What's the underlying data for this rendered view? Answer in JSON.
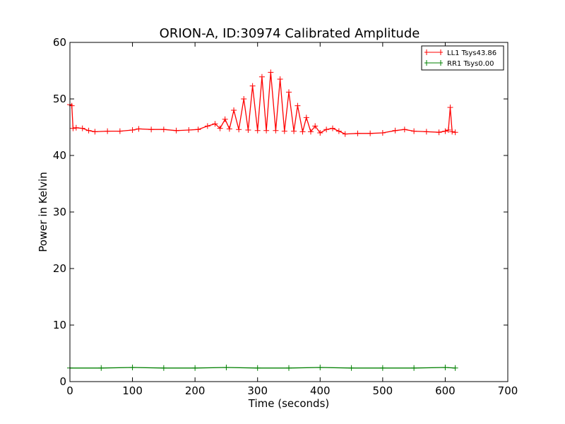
{
  "chart_data": {
    "type": "line",
    "title": "ORION-A, ID:30974 Calibrated Amplitude",
    "xlabel": "Time (seconds)",
    "ylabel": "Power in Kelvin",
    "xlim": [
      0,
      700
    ],
    "ylim": [
      0,
      60
    ],
    "xticks": [
      0,
      100,
      200,
      300,
      400,
      500,
      600,
      700
    ],
    "yticks": [
      0,
      10,
      20,
      30,
      40,
      50,
      60
    ],
    "grid": false,
    "legend_position": "top-right",
    "series": [
      {
        "name": "LL1 Tsys43.86",
        "color": "#ff0000",
        "marker": "plus",
        "x": [
          0,
          3,
          5,
          10,
          20,
          30,
          40,
          60,
          80,
          100,
          110,
          130,
          150,
          170,
          190,
          205,
          220,
          232,
          240,
          248,
          255,
          262,
          270,
          278,
          285,
          292,
          300,
          307,
          314,
          321,
          329,
          336,
          343,
          350,
          358,
          364,
          372,
          378,
          385,
          392,
          400,
          410,
          420,
          430,
          440,
          460,
          480,
          500,
          520,
          535,
          550,
          570,
          590,
          600,
          605,
          608,
          611,
          616
        ],
        "y": [
          49.0,
          48.8,
          44.8,
          44.9,
          44.8,
          44.4,
          44.2,
          44.3,
          44.3,
          44.5,
          44.7,
          44.6,
          44.6,
          44.4,
          44.5,
          44.6,
          45.2,
          45.6,
          44.8,
          46.4,
          44.7,
          48.0,
          44.6,
          50.0,
          44.5,
          52.3,
          44.4,
          53.9,
          44.4,
          54.7,
          44.4,
          53.5,
          44.3,
          51.2,
          44.3,
          48.8,
          44.2,
          46.7,
          44.2,
          45.2,
          44.0,
          44.6,
          44.8,
          44.3,
          43.8,
          43.9,
          43.9,
          44.0,
          44.4,
          44.6,
          44.3,
          44.2,
          44.1,
          44.3,
          44.5,
          48.5,
          44.2,
          44.1
        ]
      },
      {
        "name": "RR1 Tsys0.00",
        "color": "#008000",
        "marker": "plus",
        "x": [
          0,
          50,
          100,
          150,
          200,
          250,
          300,
          350,
          400,
          450,
          500,
          550,
          600,
          616
        ],
        "y": [
          2.4,
          2.4,
          2.5,
          2.4,
          2.4,
          2.5,
          2.4,
          2.4,
          2.5,
          2.4,
          2.4,
          2.4,
          2.5,
          2.4
        ]
      }
    ]
  }
}
